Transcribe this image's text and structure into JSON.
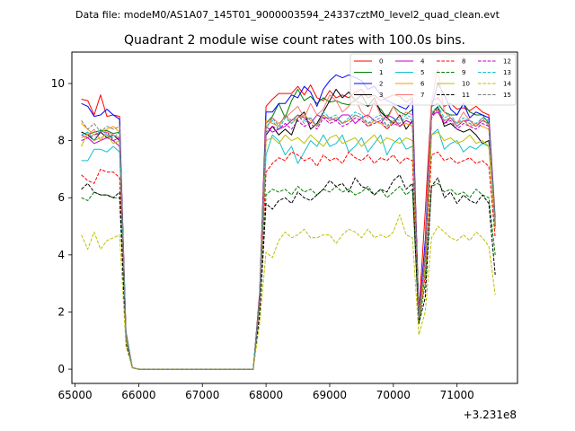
{
  "header": {
    "data_file": "Data file: modeM0/AS1A07_145T01_9000003594_24337cztM0_level2_quad_clean.evt"
  },
  "chart_data": {
    "type": "line",
    "title": "Quadrant 2 module wise count rates with 100.0s bins.",
    "xlabel": "",
    "ylabel": "",
    "x_offset_label": "+3.231e8",
    "xlim": [
      64950,
      71950
    ],
    "ylim": [
      -0.5,
      11.1
    ],
    "x_ticks": [
      65000,
      66000,
      67000,
      68000,
      69000,
      70000,
      71000
    ],
    "x_tick_labels": [
      "65000",
      "66000",
      "67000",
      "68000",
      "69000",
      "70000",
      "71000"
    ],
    "y_ticks": [
      0,
      2,
      4,
      6,
      8,
      10
    ],
    "y_tick_labels": [
      "0",
      "2",
      "4",
      "6",
      "8",
      "10"
    ],
    "grid": false,
    "legend_position": "top-right",
    "x": [
      65100,
      65200,
      65300,
      65400,
      65500,
      65600,
      65700,
      65800,
      65900,
      66000,
      66100,
      66200,
      66300,
      66400,
      66500,
      66600,
      66700,
      66800,
      66900,
      67000,
      67100,
      67200,
      67300,
      67400,
      67500,
      67600,
      67700,
      67800,
      67900,
      68000,
      68100,
      68200,
      68300,
      68400,
      68500,
      68600,
      68700,
      68800,
      68900,
      69000,
      69100,
      69200,
      69300,
      69400,
      69500,
      69600,
      69700,
      69800,
      69900,
      70000,
      70100,
      70200,
      70300,
      70400,
      70500,
      70600,
      70700,
      70800,
      70900,
      71000,
      71100,
      71200,
      71300,
      71400,
      71500,
      71600
    ],
    "series": [
      {
        "name": "0",
        "color": "#ff0000",
        "dash": "solid",
        "values": [
          9.45,
          9.4,
          8.9,
          9.6,
          8.85,
          8.9,
          8.85,
          1.3,
          0.05,
          0,
          0,
          0,
          0,
          0,
          0,
          0,
          0,
          0,
          0,
          0,
          0,
          0,
          0,
          0,
          0,
          0,
          0,
          0,
          2.7,
          9.2,
          9.45,
          9.65,
          9.65,
          9.65,
          9.9,
          9.6,
          9.95,
          9.5,
          9.4,
          9.75,
          9.5,
          9.6,
          9.5,
          9.7,
          9.8,
          9.5,
          9.6,
          9.4,
          9.5,
          9.6,
          9.55,
          9.35,
          9.5,
          2.0,
          5.5,
          9.4,
          9.5,
          9.2,
          9.3,
          9.1,
          9.15,
          9.05,
          9.2,
          9.0,
          8.9,
          5.3
        ]
      },
      {
        "name": "1",
        "color": "#008000",
        "dash": "solid",
        "values": [
          8.3,
          8.2,
          8.3,
          8.35,
          8.35,
          8.25,
          8.3,
          1.3,
          0.05,
          0,
          0,
          0,
          0,
          0,
          0,
          0,
          0,
          0,
          0,
          0,
          0,
          0,
          0,
          0,
          0,
          0,
          0,
          0,
          2.5,
          8.6,
          8.85,
          9.3,
          8.8,
          9.4,
          9.8,
          9.4,
          9.55,
          9.3,
          9.5,
          9.35,
          9.4,
          9.3,
          9.25,
          9.4,
          9.3,
          9.2,
          9.3,
          9.1,
          8.8,
          9.2,
          9.0,
          8.9,
          9.1,
          1.9,
          4.0,
          9.2,
          9.3,
          9.0,
          8.9,
          8.9,
          9.3,
          9.0,
          8.9,
          8.9,
          8.6,
          5.2
        ]
      },
      {
        "name": "2",
        "color": "#0000ff",
        "dash": "solid",
        "values": [
          9.3,
          9.2,
          8.85,
          8.9,
          9.1,
          8.9,
          8.75,
          1.2,
          0.05,
          0,
          0,
          0,
          0,
          0,
          0,
          0,
          0,
          0,
          0,
          0,
          0,
          0,
          0,
          0,
          0,
          0,
          0,
          0,
          2.6,
          9.0,
          9.0,
          9.3,
          9.3,
          9.6,
          9.5,
          9.9,
          9.7,
          9.2,
          9.8,
          10.1,
          10.3,
          10.2,
          10.3,
          10.2,
          10.1,
          9.8,
          9.9,
          9.6,
          9.4,
          9.3,
          9.2,
          9.1,
          9.4,
          1.8,
          4.5,
          9.2,
          10.0,
          9.6,
          9.1,
          8.9,
          9.3,
          8.8,
          9.0,
          8.9,
          8.8,
          5.1
        ]
      },
      {
        "name": "3",
        "color": "#000000",
        "dash": "solid",
        "values": [
          8.3,
          8.2,
          8.0,
          8.3,
          8.1,
          8.2,
          8.0,
          1.2,
          0.05,
          0,
          0,
          0,
          0,
          0,
          0,
          0,
          0,
          0,
          0,
          0,
          0,
          0,
          0,
          0,
          0,
          0,
          0,
          0,
          2.5,
          8.2,
          8.5,
          8.2,
          8.4,
          8.2,
          8.8,
          9.0,
          8.4,
          8.6,
          9.0,
          9.4,
          9.8,
          9.5,
          9.7,
          9.4,
          9.6,
          9.2,
          9.5,
          9.0,
          8.8,
          8.6,
          8.9,
          8.4,
          8.7,
          1.9,
          3.6,
          8.9,
          9.2,
          8.5,
          8.6,
          8.4,
          8.3,
          8.4,
          8.2,
          7.9,
          8.0,
          5.0
        ]
      },
      {
        "name": "4",
        "color": "#bf00bf",
        "dash": "solid",
        "values": [
          8.2,
          8.1,
          7.9,
          8.0,
          8.1,
          8.0,
          7.8,
          1.2,
          0.05,
          0,
          0,
          0,
          0,
          0,
          0,
          0,
          0,
          0,
          0,
          0,
          0,
          0,
          0,
          0,
          0,
          0,
          0,
          0,
          2.4,
          8.5,
          8.3,
          8.4,
          8.5,
          8.7,
          8.9,
          8.8,
          8.6,
          8.9,
          8.8,
          8.8,
          8.7,
          8.9,
          8.9,
          8.6,
          8.8,
          8.9,
          8.7,
          8.6,
          8.9,
          8.8,
          8.5,
          8.7,
          8.6,
          1.8,
          3.9,
          8.9,
          9.0,
          8.6,
          8.8,
          8.5,
          8.7,
          8.7,
          8.5,
          8.7,
          8.6,
          5.0
        ]
      },
      {
        "name": "5",
        "color": "#17becf",
        "dash": "solid",
        "values": [
          7.3,
          7.3,
          7.7,
          7.7,
          7.6,
          7.8,
          7.6,
          1.1,
          0.05,
          0,
          0,
          0,
          0,
          0,
          0,
          0,
          0,
          0,
          0,
          0,
          0,
          0,
          0,
          0,
          0,
          0,
          0,
          0,
          2.3,
          7.5,
          8.2,
          8.0,
          7.5,
          7.8,
          7.2,
          7.6,
          8.0,
          7.8,
          8.2,
          7.8,
          7.9,
          8.2,
          7.6,
          7.8,
          8.1,
          7.6,
          7.9,
          8.2,
          7.5,
          7.9,
          8.1,
          7.7,
          7.8,
          1.7,
          3.5,
          8.2,
          8.4,
          7.7,
          7.9,
          8.0,
          7.6,
          7.8,
          7.7,
          7.9,
          7.8,
          4.9
        ]
      },
      {
        "name": "6",
        "color": "#ff9900",
        "dash": "solid",
        "values": [
          8.6,
          8.4,
          8.2,
          8.3,
          8.4,
          8.5,
          8.3,
          1.2,
          0.05,
          0,
          0,
          0,
          0,
          0,
          0,
          0,
          0,
          0,
          0,
          0,
          0,
          0,
          0,
          0,
          0,
          0,
          0,
          0,
          2.5,
          8.7,
          8.6,
          8.5,
          8.9,
          8.6,
          8.8,
          8.9,
          8.7,
          8.5,
          8.9,
          8.7,
          8.8,
          8.6,
          8.7,
          8.9,
          8.8,
          8.5,
          8.7,
          8.6,
          8.4,
          8.7,
          8.5,
          8.6,
          8.5,
          1.8,
          3.8,
          9.0,
          9.1,
          8.7,
          8.8,
          8.6,
          8.7,
          8.5,
          8.6,
          8.5,
          8.4,
          5.0
        ]
      },
      {
        "name": "7",
        "color": "#ff7777",
        "dash": "solid",
        "values": [
          8.1,
          8.2,
          8.4,
          8.0,
          8.3,
          8.2,
          8.1,
          1.2,
          0.05,
          0,
          0,
          0,
          0,
          0,
          0,
          0,
          0,
          0,
          0,
          0,
          0,
          0,
          0,
          0,
          0,
          0,
          0,
          0,
          2.4,
          8.4,
          8.8,
          8.6,
          8.8,
          9.0,
          9.2,
          8.8,
          9.3,
          8.9,
          9.1,
          9.6,
          9.4,
          9.0,
          9.2,
          9.5,
          9.0,
          8.8,
          9.4,
          8.9,
          8.7,
          9.2,
          8.8,
          9.0,
          8.9,
          1.8,
          4.1,
          9.4,
          10.5,
          9.0,
          8.8,
          8.6,
          9.0,
          8.7,
          8.5,
          8.8,
          8.5,
          5.1
        ]
      },
      {
        "name": "8",
        "color": "#ff0000",
        "dash": "dashed",
        "values": [
          6.8,
          6.6,
          6.5,
          7.0,
          6.9,
          6.9,
          6.7,
          1.0,
          0.05,
          0,
          0,
          0,
          0,
          0,
          0,
          0,
          0,
          0,
          0,
          0,
          0,
          0,
          0,
          0,
          0,
          0,
          0,
          0,
          2.2,
          6.9,
          7.2,
          7.4,
          7.3,
          7.6,
          7.5,
          7.3,
          7.4,
          7.1,
          7.5,
          7.3,
          7.4,
          7.2,
          7.6,
          7.4,
          7.3,
          7.5,
          7.2,
          7.4,
          7.3,
          7.5,
          7.2,
          7.4,
          7.3,
          1.7,
          3.3,
          7.5,
          7.6,
          7.3,
          7.4,
          7.2,
          7.3,
          7.4,
          7.2,
          7.3,
          7.1,
          4.6
        ]
      },
      {
        "name": "9",
        "color": "#008000",
        "dash": "dashed",
        "values": [
          6.0,
          5.9,
          6.2,
          6.1,
          6.1,
          6.0,
          6.0,
          0.9,
          0.05,
          0,
          0,
          0,
          0,
          0,
          0,
          0,
          0,
          0,
          0,
          0,
          0,
          0,
          0,
          0,
          0,
          0,
          0,
          0,
          2.0,
          6.1,
          6.3,
          6.2,
          6.3,
          6.1,
          6.4,
          6.2,
          6.3,
          6.1,
          6.3,
          6.2,
          6.4,
          6.2,
          6.3,
          6.1,
          6.2,
          6.4,
          6.1,
          6.3,
          6.0,
          6.2,
          6.4,
          6.1,
          6.3,
          1.6,
          3.0,
          6.4,
          6.5,
          6.2,
          6.3,
          6.1,
          6.2,
          6.0,
          6.3,
          6.1,
          6.0,
          4.0
        ]
      },
      {
        "name": "10",
        "color": "#bfbf00",
        "dash": "solid",
        "values": [
          7.8,
          8.3,
          8.0,
          8.1,
          8.2,
          7.9,
          8.0,
          1.1,
          0.05,
          0,
          0,
          0,
          0,
          0,
          0,
          0,
          0,
          0,
          0,
          0,
          0,
          0,
          0,
          0,
          0,
          0,
          0,
          0,
          2.3,
          8.0,
          8.1,
          7.9,
          8.2,
          8.0,
          8.1,
          7.9,
          8.2,
          8.0,
          7.8,
          8.1,
          8.2,
          7.9,
          8.0,
          8.1,
          7.8,
          8.0,
          8.2,
          7.9,
          8.1,
          8.0,
          7.9,
          8.1,
          8.0,
          1.7,
          3.6,
          8.2,
          8.3,
          8.0,
          8.1,
          7.9,
          8.0,
          8.2,
          7.9,
          8.0,
          7.8,
          4.9
        ]
      },
      {
        "name": "11",
        "color": "#000000",
        "dash": "dashed",
        "values": [
          6.3,
          6.5,
          6.2,
          6.1,
          6.1,
          6.0,
          6.2,
          0.9,
          0.05,
          0,
          0,
          0,
          0,
          0,
          0,
          0,
          0,
          0,
          0,
          0,
          0,
          0,
          0,
          0,
          0,
          0,
          0,
          0,
          1.9,
          5.8,
          5.6,
          5.9,
          6.0,
          5.8,
          6.2,
          6.0,
          5.9,
          6.1,
          6.3,
          6.6,
          6.4,
          6.5,
          6.2,
          6.7,
          6.4,
          6.3,
          6.1,
          6.3,
          6.2,
          6.6,
          6.8,
          6.3,
          6.5,
          1.6,
          2.5,
          6.4,
          6.7,
          6.0,
          6.2,
          5.8,
          6.1,
          5.9,
          5.8,
          6.1,
          5.8,
          3.3
        ]
      },
      {
        "name": "12",
        "color": "#bf00bf",
        "dash": "dashed",
        "values": [
          8.0,
          8.1,
          8.2,
          8.3,
          8.3,
          8.0,
          8.1,
          1.2,
          0.05,
          0,
          0,
          0,
          0,
          0,
          0,
          0,
          0,
          0,
          0,
          0,
          0,
          0,
          0,
          0,
          0,
          0,
          0,
          0,
          2.4,
          8.3,
          8.5,
          8.4,
          8.6,
          8.4,
          8.7,
          8.5,
          8.6,
          8.4,
          8.8,
          8.6,
          8.7,
          8.5,
          8.6,
          8.8,
          8.7,
          8.5,
          8.6,
          8.7,
          8.4,
          8.6,
          8.5,
          8.7,
          8.6,
          1.8,
          3.9,
          8.8,
          9.1,
          8.6,
          8.7,
          8.4,
          8.6,
          8.5,
          8.4,
          8.6,
          8.5,
          5.0
        ]
      },
      {
        "name": "13",
        "color": "#17becf",
        "dash": "dashed",
        "values": [
          8.2,
          8.3,
          8.0,
          8.4,
          8.2,
          8.1,
          8.3,
          1.2,
          0.05,
          0,
          0,
          0,
          0,
          0,
          0,
          0,
          0,
          0,
          0,
          0,
          0,
          0,
          0,
          0,
          0,
          0,
          0,
          0,
          2.5,
          8.5,
          8.7,
          8.4,
          8.8,
          8.6,
          8.9,
          8.7,
          8.8,
          8.5,
          9.0,
          8.8,
          8.9,
          8.6,
          8.8,
          9.0,
          8.9,
          8.6,
          8.8,
          8.9,
          8.5,
          8.8,
          8.7,
          8.9,
          8.8,
          1.8,
          4.0,
          9.0,
          9.2,
          8.8,
          8.9,
          8.6,
          8.8,
          8.7,
          8.6,
          8.8,
          8.7,
          5.1
        ]
      },
      {
        "name": "14",
        "color": "#bfbf00",
        "dash": "dashed",
        "values": [
          4.7,
          4.2,
          4.8,
          4.2,
          4.5,
          4.6,
          4.7,
          0.8,
          0.05,
          0,
          0,
          0,
          0,
          0,
          0,
          0,
          0,
          0,
          0,
          0,
          0,
          0,
          0,
          0,
          0,
          0,
          0,
          0,
          1.6,
          4.1,
          3.9,
          4.5,
          4.8,
          4.6,
          4.7,
          4.9,
          4.6,
          4.6,
          4.7,
          4.7,
          4.4,
          4.7,
          4.9,
          4.8,
          4.6,
          4.9,
          4.6,
          4.7,
          4.6,
          4.8,
          5.4,
          4.7,
          4.6,
          1.2,
          2.0,
          4.6,
          5.0,
          4.8,
          4.6,
          4.5,
          4.7,
          4.5,
          4.8,
          4.6,
          4.3,
          2.6
        ]
      },
      {
        "name": "15",
        "color": "#7f7f7f",
        "dash": "dashed",
        "values": [
          8.7,
          8.4,
          8.6,
          8.3,
          8.5,
          8.4,
          8.5,
          1.2,
          0.05,
          0,
          0,
          0,
          0,
          0,
          0,
          0,
          0,
          0,
          0,
          0,
          0,
          0,
          0,
          0,
          0,
          0,
          0,
          0,
          2.5,
          8.6,
          8.8,
          8.5,
          8.9,
          8.7,
          8.9,
          8.6,
          8.8,
          8.5,
          8.9,
          8.7,
          8.8,
          8.6,
          8.7,
          8.9,
          8.8,
          8.6,
          8.7,
          8.8,
          8.5,
          8.7,
          8.6,
          8.8,
          8.7,
          1.8,
          4.0,
          8.9,
          9.1,
          8.7,
          8.8,
          8.5,
          8.7,
          8.6,
          8.5,
          8.7,
          8.6,
          5.0
        ]
      }
    ]
  }
}
